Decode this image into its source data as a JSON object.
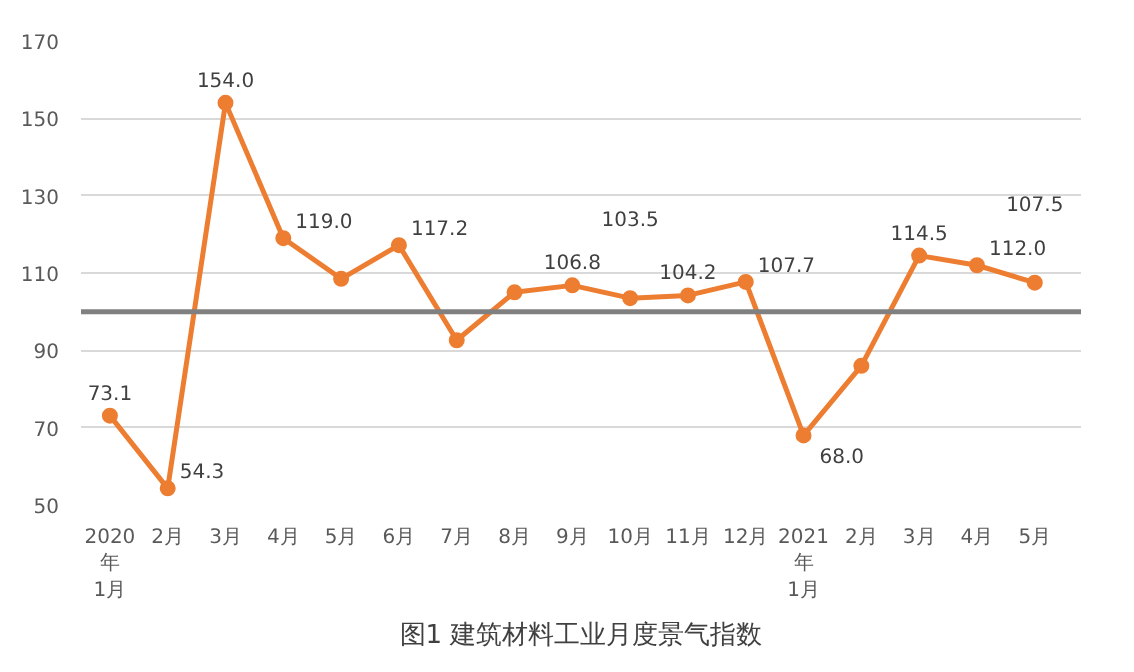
{
  "chart_data": {
    "type": "line",
    "title": "图1 建筑材料工业月度景气指数",
    "categories": [
      "2020\n年\n1月",
      "2月",
      "3月",
      "4月",
      "5月",
      "6月",
      "7月",
      "8月",
      "9月",
      "10月",
      "11月",
      "12月",
      "2021\n年\n1月",
      "2月",
      "3月",
      "4月",
      "5月"
    ],
    "series": [
      {
        "color": "#ed7d31",
        "values": [
          73.1,
          54.3,
          154.0,
          119.0,
          108.5,
          117.2,
          92.6,
          105.0,
          106.8,
          103.5,
          104.2,
          107.7,
          68.0,
          86.0,
          114.5,
          112.0,
          107.5
        ],
        "value_labels": [
          "73.1",
          "54.3",
          "154.0",
          "119.0",
          null,
          "117.2",
          null,
          null,
          "106.8",
          "103.5",
          "104.2",
          "107.7",
          "68.0",
          null,
          "114.5",
          "112.0",
          "107.5"
        ]
      }
    ],
    "ylim": [
      50,
      170
    ],
    "yticks": [
      50,
      70,
      90,
      110,
      130,
      150,
      170
    ],
    "grid": "y",
    "marker": "circle",
    "line_style": "solid",
    "ref_lines": [
      {
        "axis": "y",
        "value": 100,
        "color": "#808080"
      }
    ]
  }
}
